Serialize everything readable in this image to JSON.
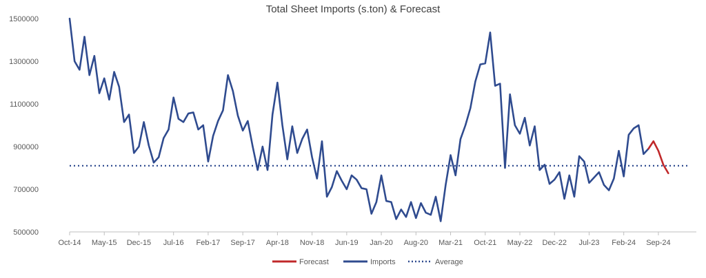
{
  "chart_data": {
    "type": "line",
    "title": "Total Sheet Imports (s.ton) & Forecast",
    "xlabel": "",
    "ylabel": "",
    "ylim": [
      500000,
      1500000
    ],
    "yticks": [
      "1500000",
      "1300000",
      "1100000",
      "900000",
      "700000",
      "500000"
    ],
    "ytick_values": [
      1500000,
      1300000,
      1100000,
      900000,
      700000,
      500000
    ],
    "xtick_labels": [
      "Oct-14",
      "May-15",
      "Dec-15",
      "Jul-16",
      "Feb-17",
      "Sep-17",
      "Apr-18",
      "Nov-18",
      "Jun-19",
      "Jan-20",
      "Aug-20",
      "Mar-21",
      "Oct-21",
      "May-22",
      "Dec-22",
      "Jul-23",
      "Feb-24",
      "Sep-24"
    ],
    "x_start_label": "Oct-14",
    "months_per_tick": 7,
    "series": [
      {
        "name": "Imports",
        "color": "#2f4b8f",
        "start_month_index": 0,
        "values": [
          1500000,
          1300000,
          1260000,
          1415000,
          1235000,
          1325000,
          1150000,
          1220000,
          1120000,
          1250000,
          1180000,
          1015000,
          1050000,
          870000,
          900000,
          1015000,
          905000,
          825000,
          850000,
          940000,
          980000,
          1130000,
          1030000,
          1015000,
          1055000,
          1060000,
          980000,
          1000000,
          830000,
          950000,
          1020000,
          1070000,
          1235000,
          1160000,
          1045000,
          975000,
          1020000,
          900000,
          790000,
          900000,
          790000,
          1050000,
          1200000,
          1000000,
          840000,
          995000,
          870000,
          935000,
          980000,
          850000,
          750000,
          925000,
          665000,
          710000,
          785000,
          740000,
          700000,
          765000,
          745000,
          705000,
          700000,
          585000,
          640000,
          765000,
          645000,
          640000,
          560000,
          605000,
          570000,
          640000,
          565000,
          635000,
          590000,
          580000,
          665000,
          550000,
          720000,
          860000,
          765000,
          935000,
          1000000,
          1080000,
          1205000,
          1285000,
          1290000,
          1435000,
          1185000,
          1195000,
          800000,
          1145000,
          1000000,
          960000,
          1035000,
          905000,
          995000,
          790000,
          815000,
          725000,
          745000,
          780000,
          655000,
          765000,
          665000,
          855000,
          830000,
          730000,
          755000,
          780000,
          720000,
          695000,
          750000,
          880000,
          760000,
          955000,
          985000,
          1000000,
          865000,
          890000
        ]
      },
      {
        "name": "Forecast",
        "color": "#c0282a",
        "start_month_index": 117,
        "values": [
          890000,
          925000,
          880000,
          815000,
          775000
        ]
      },
      {
        "name": "Average",
        "color": "#2f4b8f",
        "style": "dotted",
        "value": 810000
      }
    ],
    "legend": {
      "position": "bottom",
      "entries": [
        "Forecast",
        "Imports",
        "Average"
      ]
    }
  }
}
